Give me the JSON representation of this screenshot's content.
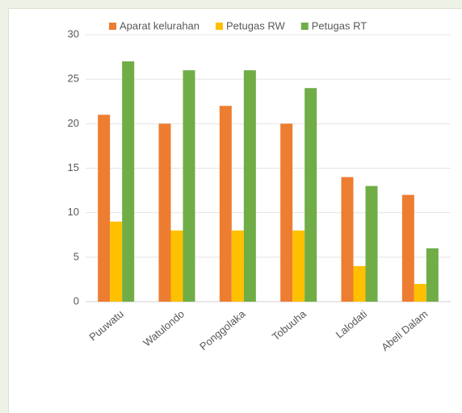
{
  "chart_data": {
    "type": "bar",
    "categories": [
      "Puuwatu",
      "Watulondo",
      "Ponggolaka",
      "Tobuuha",
      "Lalodati",
      "Abeli Dalam"
    ],
    "series": [
      {
        "name": "Aparat kelurahan",
        "color": "#ed7d31",
        "values": [
          21,
          20,
          22,
          20,
          14,
          12
        ]
      },
      {
        "name": "Petugas RW",
        "color": "#ffc000",
        "values": [
          9,
          8,
          8,
          8,
          4,
          2
        ]
      },
      {
        "name": "Petugas RT",
        "color": "#70ad47",
        "values": [
          27,
          26,
          26,
          24,
          13,
          6
        ]
      }
    ],
    "ylim": [
      0,
      30
    ],
    "yticks": [
      0,
      5,
      10,
      15,
      20,
      25,
      30
    ],
    "grid": true,
    "legend": "top"
  }
}
